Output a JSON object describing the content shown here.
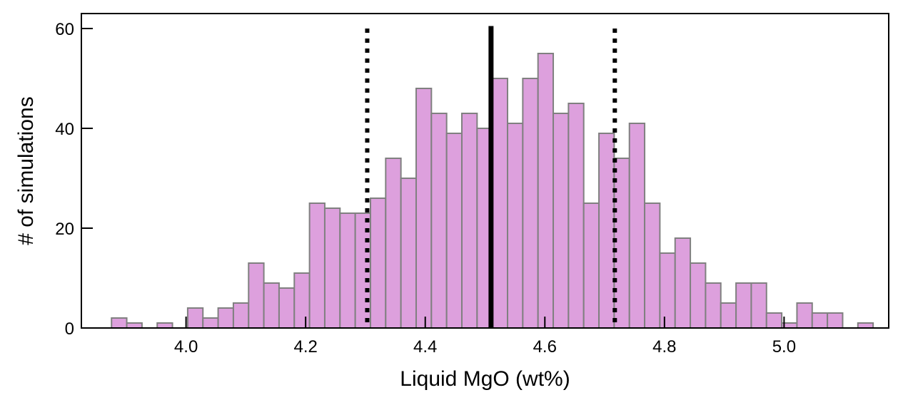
{
  "chart_data": {
    "type": "bar",
    "xlabel": "Liquid MgO (wt%)",
    "ylabel": "# of simulations",
    "xlim": [
      3.825,
      5.175
    ],
    "ylim": [
      0,
      63
    ],
    "x_ticks": [
      4.0,
      4.2,
      4.4,
      4.6,
      4.8,
      5.0
    ],
    "x_tick_labels": [
      "4.0",
      "4.2",
      "4.4",
      "4.6",
      "4.8",
      "5.0"
    ],
    "y_ticks": [
      0,
      20,
      40,
      60
    ],
    "y_tick_labels": [
      "0",
      "20",
      "40",
      "60"
    ],
    "bin_width": 0.02547,
    "bin_start": 3.8754,
    "values": [
      2,
      1,
      0,
      1,
      0,
      4,
      2,
      4,
      5,
      13,
      9,
      8,
      11,
      25,
      24,
      23,
      23,
      26,
      34,
      30,
      48,
      43,
      39,
      43,
      40,
      50,
      41,
      50,
      55,
      43,
      45,
      25,
      39,
      34,
      41,
      25,
      15,
      18,
      13,
      9,
      5,
      9,
      9,
      3,
      1,
      5,
      3,
      3,
      0,
      1
    ],
    "bar_color": "#dda0dd",
    "bar_edge_color": "#808080",
    "mean_line": {
      "x": 4.51,
      "style": "solid",
      "color": "#000000"
    },
    "interval_lines": [
      {
        "x": 4.303,
        "style": "dotted",
        "color": "#000000"
      },
      {
        "x": 4.717,
        "style": "dotted",
        "color": "#000000"
      }
    ],
    "line_top": 60,
    "grid": false,
    "legend": "none"
  }
}
